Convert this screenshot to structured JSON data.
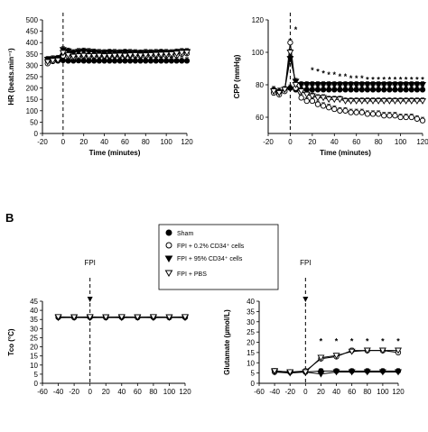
{
  "figure": {
    "panel_b_label": "B",
    "legend": {
      "entries": [
        {
          "label": "Sham",
          "marker": "filled-circle"
        },
        {
          "label": "FPI + 0.2% CD34⁺ cells",
          "marker": "open-circle"
        },
        {
          "label": "FPI + 95% CD34⁺ cells",
          "marker": "filled-triangle-down"
        },
        {
          "label": "FPI + PBS",
          "marker": "open-triangle-down"
        }
      ]
    }
  },
  "chart_data": [
    {
      "id": "hr",
      "type": "line",
      "title": "",
      "xlabel": "Time (minutes)",
      "ylabel": "HR (beats.min⁻¹)",
      "xlim": [
        -20,
        120
      ],
      "ylim": [
        0,
        500
      ],
      "xticks": [
        -20,
        0,
        20,
        40,
        60,
        80,
        100,
        120
      ],
      "yticks": [
        0,
        50,
        100,
        150,
        200,
        250,
        300,
        350,
        400,
        450,
        500
      ],
      "event_line_x": 0,
      "event_label": "",
      "x": [
        -15,
        -10,
        -5,
        0,
        5,
        10,
        15,
        20,
        25,
        30,
        35,
        40,
        45,
        50,
        55,
        60,
        65,
        70,
        75,
        80,
        85,
        90,
        95,
        100,
        105,
        110,
        115,
        120
      ],
      "series": [
        {
          "name": "Sham",
          "marker": "filled-circle",
          "values": [
            320,
            318,
            320,
            322,
            320,
            320,
            321,
            320,
            320,
            320,
            320,
            320,
            320,
            320,
            320,
            320,
            320,
            320,
            320,
            320,
            320,
            320,
            320,
            320,
            320,
            320,
            320,
            320
          ]
        },
        {
          "name": "FPI + 0.2% CD34⁺ cells",
          "marker": "open-circle",
          "values": [
            308,
            318,
            325,
            342,
            340,
            335,
            338,
            340,
            338,
            340,
            342,
            340,
            341,
            343,
            342,
            344,
            345,
            343,
            342,
            341,
            343,
            344,
            345,
            344,
            346,
            345,
            350,
            352
          ]
        },
        {
          "name": "FPI + 95% CD34⁺ cells",
          "marker": "filled-triangle-down",
          "values": [
            325,
            328,
            330,
            368,
            362,
            355,
            360,
            362,
            360,
            358,
            356,
            355,
            357,
            356,
            355,
            357,
            356,
            355,
            354,
            356,
            355,
            356,
            357,
            356,
            355,
            358,
            360,
            360
          ]
        },
        {
          "name": "FPI + PBS",
          "marker": "open-triangle-down",
          "values": [
            315,
            320,
            322,
            355,
            345,
            338,
            340,
            342,
            340,
            341,
            342,
            340,
            341,
            342,
            343,
            342,
            344,
            345,
            343,
            344,
            345,
            346,
            347,
            348,
            349,
            352,
            355,
            356
          ]
        }
      ],
      "significance_marks": [],
      "grid": false
    },
    {
      "id": "cpp",
      "type": "line",
      "title": "",
      "xlabel": "Time (minutes)",
      "ylabel": "CPP (mmHg)",
      "xlim": [
        -20,
        120
      ],
      "ylim": [
        50,
        120
      ],
      "xticks": [
        -20,
        0,
        20,
        40,
        60,
        80,
        100,
        120
      ],
      "yticks": [
        60,
        80,
        100,
        120
      ],
      "event_line_x": 0,
      "event_label": "",
      "x": [
        -15,
        -10,
        -5,
        0,
        5,
        10,
        15,
        20,
        25,
        30,
        35,
        40,
        45,
        50,
        55,
        60,
        65,
        70,
        75,
        80,
        85,
        90,
        95,
        100,
        105,
        110,
        115,
        120
      ],
      "series": [
        {
          "name": "Sham",
          "marker": "filled-circle",
          "values": [
            77,
            76,
            77,
            78,
            77,
            77,
            77,
            77,
            77,
            77,
            77,
            77,
            77,
            77,
            77,
            77,
            77,
            77,
            77,
            77,
            77,
            77,
            77,
            77,
            77,
            77,
            77,
            77
          ]
        },
        {
          "name": "FPI + 0.2% CD34⁺ cells",
          "marker": "open-circle",
          "values": [
            75,
            74,
            76,
            106,
            78,
            72,
            70,
            70,
            68,
            67,
            66,
            65,
            64,
            64,
            63,
            63,
            63,
            62,
            62,
            62,
            61,
            61,
            61,
            60,
            60,
            60,
            59,
            58
          ]
        },
        {
          "name": "FPI + 95% CD34⁺ cells",
          "marker": "filled-triangle-down",
          "values": [
            76,
            75,
            77,
            96,
            82,
            80,
            80,
            80,
            80,
            80,
            80,
            80,
            80,
            80,
            80,
            80,
            80,
            80,
            80,
            80,
            80,
            80,
            80,
            80,
            80,
            80,
            80,
            80
          ]
        },
        {
          "name": "FPI + PBS",
          "marker": "open-triangle-down",
          "values": [
            76,
            75,
            77,
            100,
            80,
            76,
            74,
            73,
            72,
            72,
            71,
            71,
            71,
            70,
            70,
            70,
            70,
            70,
            70,
            70,
            70,
            70,
            70,
            70,
            70,
            70,
            70,
            70
          ]
        }
      ],
      "significance_marks": [
        {
          "x": 5,
          "y": 114,
          "text": "*"
        },
        {
          "x": 20,
          "y": 89,
          "text": "*"
        },
        {
          "x": 25,
          "y": 88,
          "text": "*"
        },
        {
          "x": 30,
          "y": 87,
          "text": "*"
        },
        {
          "x": 35,
          "y": 86,
          "text": "*"
        },
        {
          "x": 40,
          "y": 86,
          "text": "*"
        },
        {
          "x": 45,
          "y": 85,
          "text": "*"
        },
        {
          "x": 50,
          "y": 85,
          "text": "*"
        },
        {
          "x": 55,
          "y": 84,
          "text": "*"
        },
        {
          "x": 60,
          "y": 84,
          "text": "*"
        },
        {
          "x": 65,
          "y": 84,
          "text": "*"
        },
        {
          "x": 70,
          "y": 83,
          "text": "*"
        },
        {
          "x": 75,
          "y": 83,
          "text": "*"
        },
        {
          "x": 80,
          "y": 83,
          "text": "*"
        },
        {
          "x": 85,
          "y": 83,
          "text": "*"
        },
        {
          "x": 90,
          "y": 83,
          "text": "*"
        },
        {
          "x": 95,
          "y": 83,
          "text": "*"
        },
        {
          "x": 100,
          "y": 83,
          "text": "*"
        },
        {
          "x": 105,
          "y": 83,
          "text": "*"
        },
        {
          "x": 110,
          "y": 83,
          "text": "*"
        },
        {
          "x": 115,
          "y": 83,
          "text": "*"
        },
        {
          "x": 120,
          "y": 83,
          "text": "*"
        }
      ],
      "grid": false
    },
    {
      "id": "tco",
      "type": "line",
      "title": "",
      "xlabel": "",
      "ylabel": "Tco (°C)",
      "xlim": [
        -60,
        120
      ],
      "ylim": [
        0,
        45
      ],
      "xticks": [
        -60,
        -40,
        -20,
        0,
        20,
        40,
        60,
        80,
        100,
        120
      ],
      "yticks": [
        0,
        5,
        10,
        15,
        20,
        25,
        30,
        35,
        40,
        45
      ],
      "event_line_x": 0,
      "event_label": "FPI",
      "x": [
        -40,
        -20,
        0,
        20,
        40,
        60,
        80,
        100,
        120
      ],
      "series": [
        {
          "name": "Sham",
          "marker": "filled-circle",
          "values": [
            36.2,
            36.1,
            36.2,
            36.1,
            36.2,
            36.1,
            36.2,
            36.1,
            36.2
          ]
        },
        {
          "name": "FPI + 0.2% CD34⁺ cells",
          "marker": "open-circle",
          "values": [
            36.3,
            36.2,
            36.3,
            36.2,
            36.3,
            36.2,
            36.3,
            36.2,
            36.3
          ]
        },
        {
          "name": "FPI + 95% CD34⁺ cells",
          "marker": "filled-triangle-down",
          "values": [
            36.0,
            36.1,
            36.0,
            36.1,
            36.0,
            36.1,
            36.0,
            36.1,
            36.0
          ]
        },
        {
          "name": "FPI + PBS",
          "marker": "open-triangle-down",
          "values": [
            36.4,
            36.3,
            36.4,
            36.3,
            36.4,
            36.3,
            36.4,
            36.3,
            36.4
          ]
        }
      ],
      "significance_marks": [],
      "grid": false
    },
    {
      "id": "glutamate",
      "type": "line",
      "title": "",
      "xlabel": "",
      "ylabel": "Glutamate (µmol/L)",
      "xlim": [
        -60,
        120
      ],
      "ylim": [
        0,
        40
      ],
      "xticks": [
        -60,
        -40,
        -20,
        0,
        20,
        40,
        60,
        80,
        100,
        120
      ],
      "yticks": [
        0,
        5,
        10,
        15,
        20,
        25,
        30,
        35,
        40
      ],
      "event_line_x": 0,
      "event_label": "FPI",
      "x": [
        -40,
        -20,
        0,
        20,
        40,
        60,
        80,
        100,
        120
      ],
      "series": [
        {
          "name": "Sham",
          "marker": "filled-circle",
          "values": [
            6,
            5.5,
            5.5,
            6,
            6,
            6,
            6,
            6,
            6
          ]
        },
        {
          "name": "FPI + 0.2% CD34⁺ cells",
          "marker": "open-circle",
          "values": [
            5.5,
            5.5,
            6,
            12,
            13,
            16,
            16,
            16,
            15
          ]
        },
        {
          "name": "FPI + 95% CD34⁺ cells",
          "marker": "filled-triangle-down",
          "values": [
            5.5,
            5,
            5.5,
            4.5,
            5.5,
            5.5,
            5.5,
            5.5,
            5.5
          ]
        },
        {
          "name": "FPI + PBS",
          "marker": "open-triangle-down",
          "values": [
            6,
            5.5,
            5.5,
            12.5,
            13.5,
            15.5,
            16,
            16,
            16
          ]
        }
      ],
      "significance_marks": [
        {
          "x": 20,
          "y": 20.5,
          "text": "*"
        },
        {
          "x": 40,
          "y": 20.5,
          "text": "*"
        },
        {
          "x": 60,
          "y": 20.5,
          "text": "*"
        },
        {
          "x": 80,
          "y": 20.5,
          "text": "*"
        },
        {
          "x": 100,
          "y": 20.5,
          "text": "*"
        },
        {
          "x": 120,
          "y": 20.5,
          "text": "*"
        }
      ],
      "grid": false
    }
  ],
  "colors": {
    "ink": "#000000",
    "paper": "#ffffff",
    "fpi_line": "#000000"
  }
}
